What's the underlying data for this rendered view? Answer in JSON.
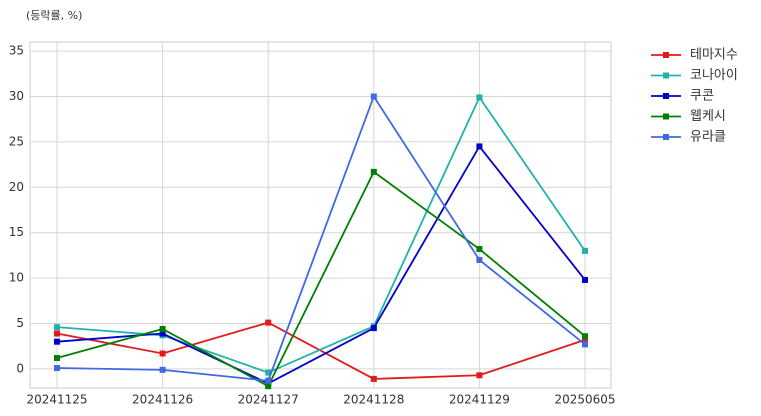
{
  "chart_data": {
    "type": "line",
    "title": "(등락률, %)",
    "categories": [
      "20241125",
      "20241126",
      "20241127",
      "20241128",
      "20241129",
      "20250605"
    ],
    "series": [
      {
        "name": "테마지수",
        "color": "#e31a1c",
        "values": [
          3.9,
          1.7,
          5.1,
          -1.1,
          -0.7,
          3.2
        ]
      },
      {
        "name": "코나아이",
        "color": "#20b2aa",
        "values": [
          4.6,
          3.7,
          -0.4,
          4.7,
          29.9,
          13.0
        ]
      },
      {
        "name": "쿠콘",
        "color": "#0000cd",
        "values": [
          3.0,
          3.9,
          -1.6,
          4.5,
          24.5,
          9.8
        ]
      },
      {
        "name": "웹케시",
        "color": "#008000",
        "values": [
          1.2,
          4.4,
          -1.9,
          21.7,
          13.2,
          3.6
        ]
      },
      {
        "name": "유라클",
        "color": "#4169e1",
        "values": [
          0.1,
          -0.1,
          -1.3,
          30.0,
          12.0,
          2.7
        ]
      }
    ],
    "ylim": [
      -2.1,
      36
    ],
    "yticks": [
      0,
      5,
      10,
      15,
      20,
      25,
      30,
      35
    ],
    "grid": true,
    "legend": "outside-right"
  }
}
